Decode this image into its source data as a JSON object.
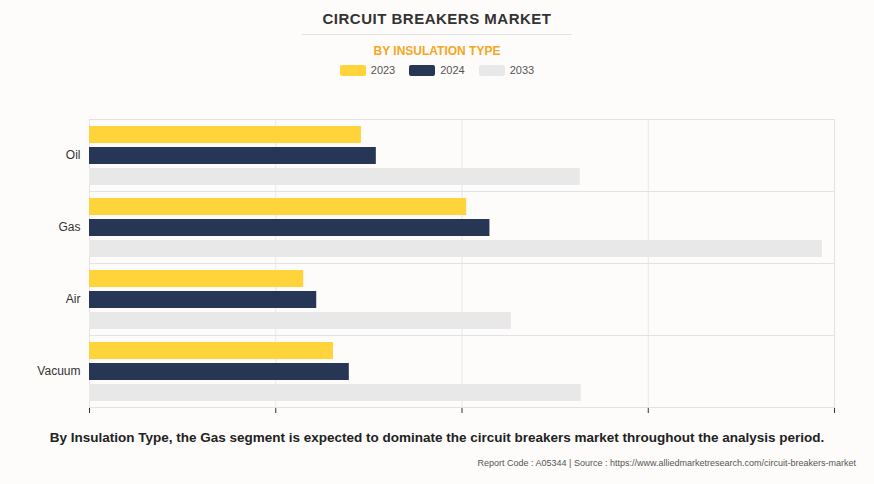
{
  "chart_data": {
    "type": "bar",
    "orientation": "horizontal",
    "title": "CIRCUIT BREAKERS MARKET",
    "subtitle": "BY INSULATION TYPE",
    "caption": "By Insulation Type, the Gas segment is expected to dominate the circuit breakers market throughout the analysis period.",
    "footer": "Report Code : A05344  |  Source : https://www.alliedmarketresearch.com/circuit-breakers-market",
    "categories": [
      "Oil",
      "Gas",
      "Air",
      "Vacuum"
    ],
    "series": [
      {
        "name": "2023",
        "color": "#ffd43b",
        "values": [
          2.92,
          4.05,
          2.3,
          2.62
        ]
      },
      {
        "name": "2024",
        "color": "#283655",
        "values": [
          3.08,
          4.3,
          2.44,
          2.79
        ]
      },
      {
        "name": "2033",
        "color": "#e8e8e8",
        "values": [
          5.27,
          7.87,
          4.53,
          5.28
        ]
      }
    ],
    "xlim": [
      0,
      8
    ],
    "xticks": [
      0,
      2,
      4,
      6,
      8
    ],
    "grid": true,
    "tick_labels": "y",
    "legend": "top"
  }
}
